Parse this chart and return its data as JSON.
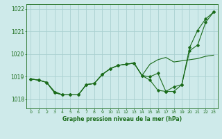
{
  "title": "Graphe pression niveau de la mer (hPa)",
  "background_color": "#ceeaea",
  "grid_color": "#aad0d0",
  "line_color": "#1a6b1a",
  "xlim": [
    -0.5,
    23.5
  ],
  "ylim": [
    1017.6,
    1022.2
  ],
  "yticks": [
    1018,
    1019,
    1020,
    1021,
    1022
  ],
  "xticks": [
    0,
    1,
    2,
    3,
    4,
    5,
    6,
    7,
    8,
    9,
    10,
    11,
    12,
    13,
    14,
    15,
    16,
    17,
    18,
    19,
    20,
    21,
    22,
    23
  ],
  "series1_x": [
    0,
    1,
    2,
    3,
    4,
    5,
    6,
    7,
    8,
    9,
    10,
    11,
    12,
    13,
    14,
    15,
    16,
    17,
    18,
    19,
    20,
    21,
    22,
    23
  ],
  "series1_y": [
    1018.9,
    1018.85,
    1018.75,
    1018.35,
    1018.2,
    1018.2,
    1018.2,
    1018.65,
    1018.7,
    1019.1,
    1019.35,
    1019.5,
    1019.55,
    1019.6,
    1019.05,
    1019.55,
    1019.75,
    1019.85,
    1019.65,
    1019.7,
    1019.75,
    1019.8,
    1019.9,
    1019.95
  ],
  "series2_x": [
    0,
    1,
    2,
    3,
    4,
    5,
    6,
    7,
    8,
    9,
    10,
    11,
    12,
    13,
    14,
    15,
    16,
    17,
    18,
    19,
    20,
    21,
    22,
    23
  ],
  "series2_y": [
    1018.9,
    1018.85,
    1018.75,
    1018.3,
    1018.2,
    1018.2,
    1018.2,
    1018.65,
    1018.7,
    1019.1,
    1019.35,
    1019.5,
    1019.55,
    1019.6,
    1019.05,
    1018.85,
    1018.4,
    1018.35,
    1018.55,
    1018.65,
    1020.3,
    1021.05,
    1021.55,
    1021.85
  ],
  "series3_x": [
    0,
    1,
    2,
    3,
    4,
    5,
    6,
    7,
    8,
    9,
    10,
    11,
    12,
    13,
    14,
    15,
    16,
    17,
    18,
    19,
    20,
    21,
    22,
    23
  ],
  "series3_y": [
    1018.9,
    1018.85,
    1018.75,
    1018.3,
    1018.2,
    1018.2,
    1018.2,
    1018.65,
    1018.7,
    1019.1,
    1019.35,
    1019.5,
    1019.55,
    1019.6,
    1019.05,
    1019.0,
    1019.15,
    1018.35,
    1018.35,
    1018.65,
    1020.15,
    1020.4,
    1021.4,
    1021.85
  ]
}
